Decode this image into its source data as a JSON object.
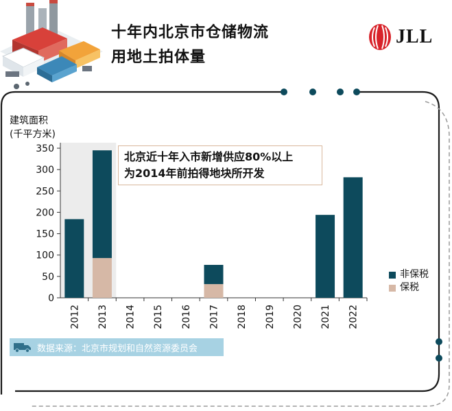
{
  "header": {
    "title_line1": "十年内北京市仓储物流",
    "title_line2": "用地土拍体量",
    "logo_text": "JLL",
    "illustration_icon": "warehouse-illustration-icon",
    "logo_icon": "jll-logo-icon"
  },
  "chart_data": {
    "type": "bar",
    "stacked": true,
    "ylabel_line1": "建筑面积",
    "ylabel_line2": "(千平方米)",
    "categories": [
      "2012",
      "2013",
      "2014",
      "2015",
      "2016",
      "2017",
      "2018",
      "2019",
      "2020",
      "2021",
      "2022"
    ],
    "series": [
      {
        "name": "保税",
        "color": "#d6b8a6",
        "values": [
          0,
          93,
          0,
          0,
          0,
          32,
          0,
          0,
          0,
          0,
          0
        ]
      },
      {
        "name": "非保税",
        "color": "#0d4a5c",
        "values": [
          184,
          252,
          0,
          0,
          0,
          45,
          0,
          0,
          0,
          194,
          282
        ]
      }
    ],
    "legend_order": [
      "非保税",
      "保税"
    ],
    "ylim": [
      0,
      350
    ],
    "yticks": [
      0,
      50,
      100,
      150,
      200,
      250,
      300,
      350
    ],
    "highlight_categories": [
      "2012",
      "2013"
    ],
    "highlight_color": "#ececec",
    "annotation_line1": "北京近十年入市新增供应80%以上",
    "annotation_line2": "为2014年前拍得地块所开发",
    "legend_placement": "right"
  },
  "footer": {
    "source_text": "数据来源：北京市规划和自然资源委员会",
    "source_icon": "truck-icon",
    "source_bg": "#a7d2e3"
  },
  "colors": {
    "frame": "#1a1a1a",
    "dots": "#0d4a5c"
  }
}
